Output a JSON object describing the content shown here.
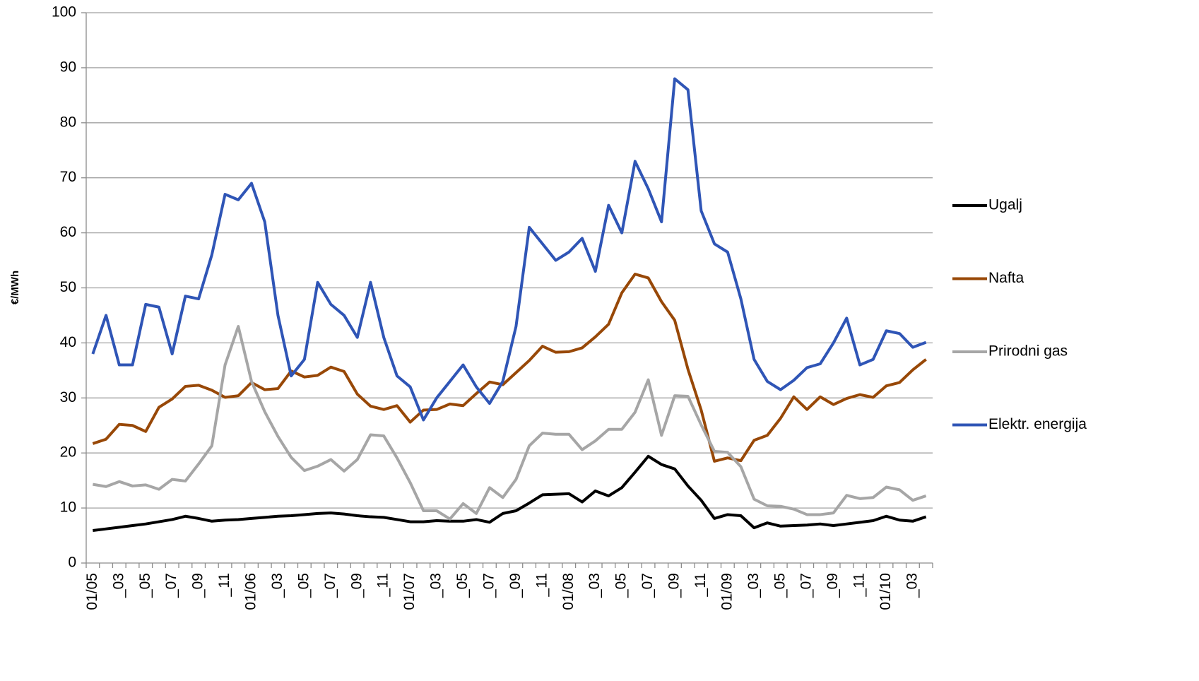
{
  "chart_data": {
    "type": "line",
    "y_label": "€/MWh",
    "categories": [
      "01/05",
      null,
      "_03",
      null,
      "_05",
      null,
      "_07",
      null,
      "_09",
      null,
      "_11",
      null,
      "01/06",
      null,
      "_03",
      null,
      "_05",
      null,
      "_07",
      null,
      "_09",
      null,
      "_11",
      null,
      "01/07",
      null,
      "_03",
      null,
      "_05",
      null,
      "_07",
      null,
      "_09",
      null,
      "_11",
      null,
      "01/08",
      null,
      "_03",
      null,
      "_05",
      null,
      "_07",
      null,
      "_09",
      null,
      "_11",
      null,
      "01/09",
      null,
      "_03",
      null,
      "_05",
      null,
      "_07",
      null,
      "_09",
      null,
      "_11",
      null,
      "01/10",
      null,
      "_03",
      null
    ],
    "series": [
      {
        "name": "Ugalj",
        "color": "#000000",
        "values": [
          5.9,
          6.2,
          6.5,
          6.8,
          7.1,
          7.5,
          7.9,
          8.5,
          8.1,
          7.6,
          7.8,
          7.9,
          8.1,
          8.3,
          8.5,
          8.6,
          8.8,
          9,
          9.1,
          8.9,
          8.6,
          8.4,
          8.3,
          7.9,
          7.5,
          7.5,
          7.7,
          7.6,
          7.6,
          7.9,
          7.4,
          9.0,
          9.5,
          10.9,
          12.4,
          12.5,
          12.6,
          11.1,
          13.1,
          12.2,
          13.7,
          16.5,
          19.4,
          17.9,
          17.1,
          14,
          11.4,
          8.1,
          8.8,
          8.6,
          6.4,
          7.3,
          6.7,
          6.8,
          6.9,
          7.1,
          6.8,
          7.1,
          7.4,
          7.7,
          8.5,
          7.8,
          7.6,
          8.4
        ]
      },
      {
        "name": "Nafta",
        "color": "#984807",
        "values": [
          21.7,
          22.5,
          25.2,
          25,
          23.9,
          28.3,
          29.8,
          32.1,
          32.3,
          31.4,
          30.1,
          30.4,
          32.8,
          31.5,
          31.7,
          34.9,
          33.8,
          34.1,
          35.6,
          34.8,
          30.7,
          28.5,
          27.9,
          28.6,
          25.6,
          27.8,
          27.9,
          28.9,
          28.6,
          30.8,
          32.9,
          32.4,
          34.6,
          36.8,
          39.4,
          38.3,
          38.4,
          39.1,
          41.1,
          43.4,
          49.1,
          52.5,
          51.8,
          47.5,
          44.1,
          35.2,
          27.8,
          18.5,
          19.1,
          18.6,
          22.3,
          23.2,
          26.3,
          30.2,
          27.9,
          30.2,
          28.8,
          29.9,
          30.6,
          30.1,
          32.2,
          32.8,
          35.1,
          37.0
        ]
      },
      {
        "name": "Prirodni gas",
        "color": "#a6a6a6",
        "values": [
          14.3,
          13.9,
          14.8,
          14.0,
          14.2,
          13.4,
          15.2,
          14.9,
          18,
          21.3,
          36,
          43,
          33,
          27.5,
          23,
          19.2,
          16.8,
          17.6,
          18.8,
          16.7,
          18.8,
          23.3,
          23.1,
          19.1,
          14.6,
          9.5,
          9.5,
          8,
          10.8,
          9,
          13.7,
          11.9,
          15.2,
          21.3,
          23.6,
          23.4,
          23.4,
          20.6,
          22.2,
          24.3,
          24.3,
          27.4,
          33.3,
          23.2,
          30.4,
          30.3,
          25.1,
          20.3,
          20.1,
          17.5,
          11.6,
          10.4,
          10.3,
          9.8,
          8.8,
          8.8,
          9.1,
          12.3,
          11.7,
          11.9,
          13.8,
          13.3,
          11.4,
          12.2
        ]
      },
      {
        "name": "Elektr. energija",
        "color": "#2f55b6",
        "values": [
          38,
          45,
          36,
          36,
          47,
          46.5,
          38,
          48.5,
          48,
          56,
          67,
          66,
          69,
          62,
          45,
          34,
          37,
          51,
          47,
          45,
          41,
          51,
          41,
          34,
          32,
          26,
          30,
          33,
          36,
          32,
          29,
          33,
          43,
          61,
          58,
          55,
          56.5,
          59,
          53,
          65,
          60,
          73,
          68,
          62,
          88,
          86,
          64,
          58,
          56.5,
          48,
          37,
          33,
          31.5,
          33.2,
          35.5,
          36.2,
          40,
          44.5,
          36,
          37,
          42.2,
          41.7,
          39.2,
          40.1
        ]
      }
    ],
    "ylim": [
      0,
      100
    ],
    "yticks": [
      0,
      10,
      20,
      30,
      40,
      50,
      60,
      70,
      80,
      90,
      100
    ],
    "grid": true,
    "legend": "right"
  }
}
